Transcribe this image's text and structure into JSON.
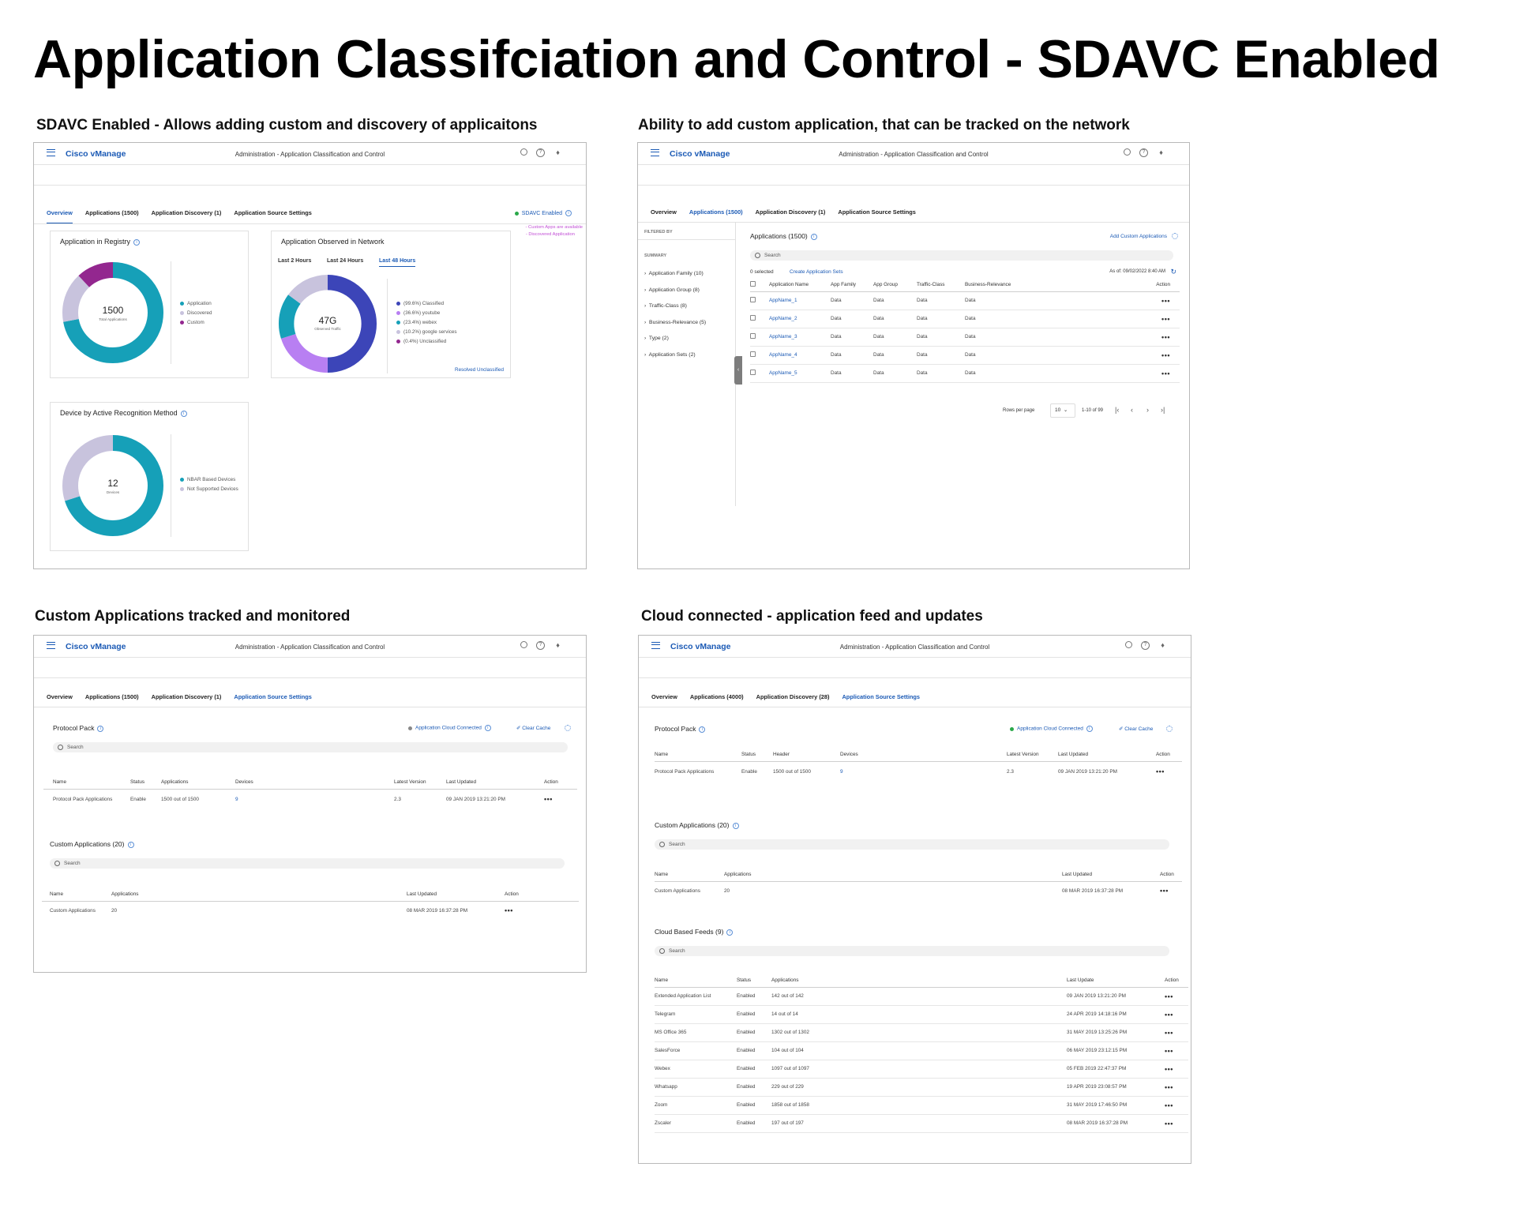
{
  "page_title": "Application Classifciation and Control - SDAVC Enabled",
  "common": {
    "brand": "Cisco vManage",
    "breadcrumb": "Administration - Application Classification and Control",
    "search_placeholder": "Search",
    "accent_color": "#1b5ab5",
    "icons": [
      "menu-icon",
      "search-icon",
      "help-icon",
      "bell-icon",
      "info-icon",
      "settings-icon",
      "more-icon"
    ]
  },
  "panel1": {
    "caption": "SDAVC Enabled - Allows adding custom and discovery of applicaitons",
    "tabs": [
      "Overview",
      "Applications (1500)",
      "Application Discovery (1)",
      "Application Source Settings"
    ],
    "sdavc_status": "SDAVC Enabled",
    "notes": [
      "- Custom Apps are available",
      "- Discovered Application"
    ],
    "registry": {
      "title": "Application in Registry",
      "center_value": "1500",
      "center_label": "Total Applications",
      "legend": [
        "Application",
        "Discovered",
        "Custom"
      ],
      "segments": [
        0.72,
        0.16,
        0.12
      ],
      "colors": [
        "#16a0b8",
        "#c8c3dd",
        "#93278f"
      ]
    },
    "observed": {
      "title": "Application Observed in Network",
      "range_tabs": [
        "Last 2 Hours",
        "Last 24 Hours",
        "Last 48 Hours"
      ],
      "center_value": "47G",
      "center_label": "Observed Traffic",
      "legend": [
        "(99.6%) Classified",
        "(36.6%) youtube",
        "(23.4%) webex",
        "(10.2%) google services",
        "(0.4%) Unclassified"
      ],
      "segments": [
        0.5,
        0.2,
        0.15,
        0.15
      ],
      "colors": [
        "#3c45b8",
        "#b87ff2",
        "#16a0b8",
        "#c8c3dd",
        "#93278f"
      ],
      "link": "Resolved Unclassified"
    },
    "devices": {
      "title": "Device by Active Recognition Method",
      "center_value": "12",
      "center_label": "Devices",
      "legend": [
        "NBAR Based Devices",
        "Not Supported Devices"
      ],
      "segments": [
        0.7,
        0.3
      ],
      "colors": [
        "#16a0b8",
        "#c8c3dd"
      ]
    }
  },
  "panel2": {
    "caption": "Ability to add custom application, that can be tracked on the network",
    "tabs": [
      "Overview",
      "Applications (1500)",
      "Application Discovery (1)",
      "Application Source Settings"
    ],
    "filtered_by": "FILTERED BY",
    "summary": "SUMMARY",
    "filters": [
      "Application Family (10)",
      "Application Group (8)",
      "Traffic-Class (8)",
      "Business-Relevance (5)",
      "Type (2)",
      "Application Sets (2)"
    ],
    "list_title": "Applications (1500)",
    "add_link": "Add Custom Applications",
    "selected": "0 selected",
    "create_sets": "Create Application Sets",
    "as_of": "As of: 09/02/2022 8:40 AM",
    "columns": [
      "Application Name",
      "App Family",
      "App Group",
      "Traffic-Class",
      "Business-Relevance",
      "Action"
    ],
    "rows": [
      {
        "name": "AppName_1",
        "v": "Data"
      },
      {
        "name": "AppName_2",
        "v": "Data"
      },
      {
        "name": "AppName_3",
        "v": "Data"
      },
      {
        "name": "AppName_4",
        "v": "Data"
      },
      {
        "name": "AppName_5",
        "v": "Data"
      }
    ],
    "rows_per_page_label": "Rows per page",
    "rows_per_page": "10",
    "range": "1-10 of 99"
  },
  "panel3": {
    "caption": "Custom Applications tracked and monitored",
    "tabs": [
      "Overview",
      "Applications (1500)",
      "Application Discovery (1)",
      "Application Source Settings"
    ],
    "protocol_pack": "Protocol Pack",
    "cloud_status": "Application Cloud Connected",
    "clear_cache": "Clear Cache",
    "pp_columns": [
      "Name",
      "Status",
      "Applications",
      "Devices",
      "Latest Version",
      "Last Updated",
      "Action"
    ],
    "pp_row": {
      "name": "Protocol Pack Applications",
      "status": "Enable",
      "apps": "1500 out of 1500",
      "devices": "9",
      "version": "2.3",
      "updated": "09  JAN 2019 13:21:20 PM"
    },
    "custom_title": "Custom Applications (20)",
    "ca_columns": [
      "Name",
      "Applications",
      "Last Updated",
      "Action"
    ],
    "ca_row": {
      "name": "Custom Applications",
      "apps": "20",
      "updated": "08  MAR 2019 16:37:28 PM"
    }
  },
  "panel4": {
    "caption": "Cloud connected - application feed and updates",
    "tabs": [
      "Overview",
      "Applications (4000)",
      "Application Discovery (28)",
      "Application Source Settings"
    ],
    "protocol_pack": "Protocol Pack",
    "cloud_status": "Application Cloud Connected",
    "clear_cache": "Clear Cache",
    "pp_columns": [
      "Name",
      "Status",
      "Header",
      "Devices",
      "Latest Version",
      "Last Updated",
      "Action"
    ],
    "pp_row": {
      "name": "Protocol Pack Applications",
      "status": "Enable",
      "apps": "1500 out of 1500",
      "devices": "9",
      "version": "2.3",
      "updated": "09  JAN 2019 13:21:20 PM"
    },
    "custom_title": "Custom Applications (20)",
    "ca_columns": [
      "Name",
      "Applications",
      "Last Updated",
      "Action"
    ],
    "ca_row": {
      "name": "Custom Applications",
      "apps": "20",
      "updated": "08  MAR 2019 16:37:28 PM"
    },
    "feeds_title": "Cloud Based Feeds (9)",
    "feed_columns": [
      "Name",
      "Status",
      "Applications",
      "Last Update",
      "Action"
    ],
    "feeds": [
      {
        "name": "Extended Application List",
        "status": "Enabled",
        "apps": "142 out of 142",
        "updated": "09  JAN 2019 13:21:20 PM"
      },
      {
        "name": "Telegram",
        "status": "Enabled",
        "apps": "14 out of 14",
        "updated": "24  APR 2019 14:18:16 PM"
      },
      {
        "name": "MS Office 365",
        "status": "Enabled",
        "apps": "1302 out of 1302",
        "updated": "31  MAY 2019 13:25:26 PM"
      },
      {
        "name": "SalesForce",
        "status": "Enabled",
        "apps": "104 out of 104",
        "updated": "06  MAY 2019 23:12:15 PM"
      },
      {
        "name": "Webex",
        "status": "Enabled",
        "apps": "1097 out of 1097",
        "updated": "05  FEB 2019 22:47:37 PM"
      },
      {
        "name": "Whatsapp",
        "status": "Enabled",
        "apps": "229 out of 229",
        "updated": "19  APR 2019 23:08:57 PM"
      },
      {
        "name": "Zoom",
        "status": "Enabled",
        "apps": "1858 out of 1858",
        "updated": "31  MAY 2019 17:46:50 PM"
      },
      {
        "name": "Zscaler",
        "status": "Enabled",
        "apps": "197 out of 197",
        "updated": "08  MAR 2019 16:37:28 PM"
      }
    ]
  }
}
